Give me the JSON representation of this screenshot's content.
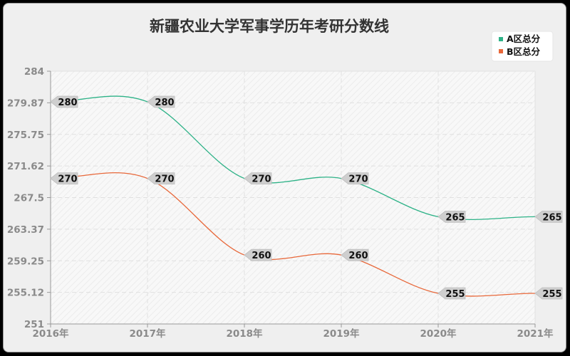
{
  "chart_data": {
    "type": "line",
    "title": "新疆农业大学军事学历年考研分数线",
    "xlabel": "",
    "ylabel": "",
    "categories": [
      "2016年",
      "2017年",
      "2018年",
      "2019年",
      "2020年",
      "2021年"
    ],
    "series": [
      {
        "name": "A区总分",
        "color": "#2db287",
        "values": [
          280,
          280,
          270,
          270,
          265,
          265
        ]
      },
      {
        "name": "B区总分",
        "color": "#e8683a",
        "values": [
          270,
          270,
          260,
          260,
          255,
          255
        ]
      }
    ],
    "ylim": [
      251,
      284
    ],
    "yticks": [
      "284",
      "279.87",
      "275.75",
      "271.62",
      "267.5",
      "263.37",
      "259.25",
      "255.12",
      "251"
    ],
    "grid": true,
    "legend_position": "top-right",
    "smooth": true
  },
  "legend": {
    "items": [
      {
        "label": "A区总分",
        "color": "#2db287"
      },
      {
        "label": "B区总分",
        "color": "#e8683a"
      }
    ]
  }
}
